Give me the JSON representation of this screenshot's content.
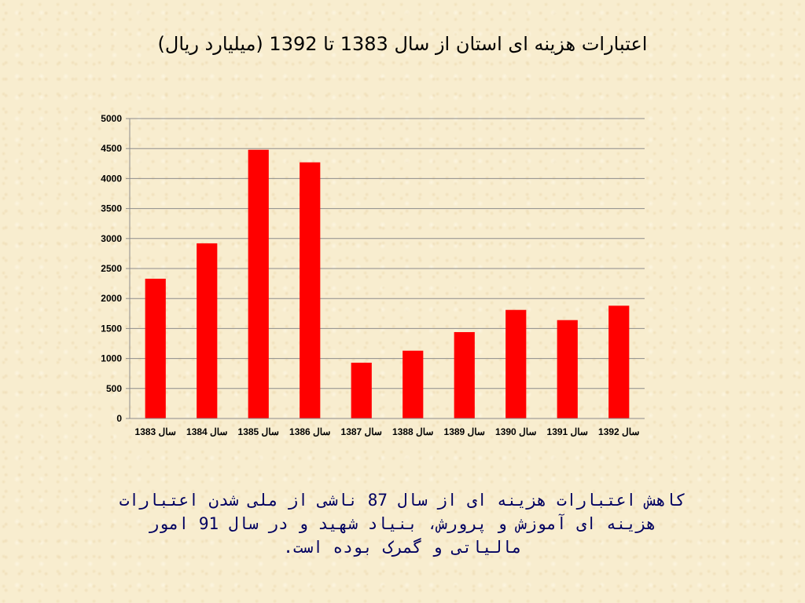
{
  "slide": {
    "title": "اعتبارات هزینه ای استان از سال 1383 تا 1392  (میلیارد ریال)",
    "caption_lines": [
      "کاهش اعتبارات هزینه ای از سال 87 ناشی از ملی شدن اعتبارات",
      "هزینه ای آموزش و پرورش،      بنیاد شهید و در سال 91 امور",
      "مالیاتی و گمرک بوده است."
    ]
  },
  "chart_data": {
    "type": "bar",
    "title": "",
    "xlabel": "",
    "ylabel": "",
    "categories": [
      "سال 1383",
      "سال 1384",
      "سال 1385",
      "سال 1386",
      "سال 1387",
      "سال 1388",
      "سال 1389",
      "سال 1390",
      "سال 1391",
      "سال 1392"
    ],
    "values": [
      2330,
      2920,
      4480,
      4270,
      930,
      1130,
      1440,
      1810,
      1640,
      1880
    ],
    "ylim": [
      0,
      5000
    ],
    "yticks": [
      0,
      500,
      1000,
      1500,
      2000,
      2500,
      3000,
      3500,
      4000,
      4500,
      5000
    ],
    "grid": true,
    "legend": "none",
    "bar_color": "#ff0000"
  }
}
